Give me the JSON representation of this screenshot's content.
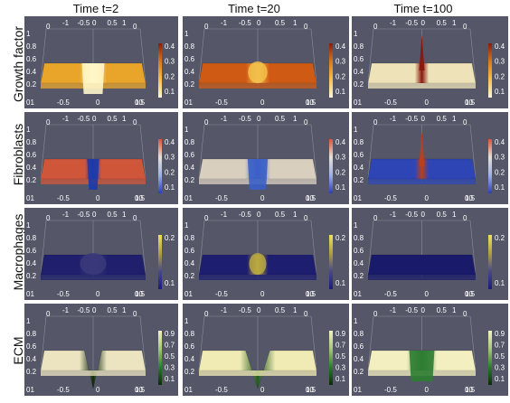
{
  "columns": [
    "Time t=2",
    "Time t=20",
    "Time t=100"
  ],
  "rows": [
    {
      "label": "Growth factor",
      "colorbar_ticks": [
        "0.4",
        "0.3",
        "0.2",
        "0.1"
      ],
      "colormap": [
        "#fff7dc",
        "#f5c24a",
        "#d8781e",
        "#8b1a10"
      ]
    },
    {
      "label": "Fibroblasts",
      "colorbar_ticks": [
        "0.4",
        "0.3",
        "0.2",
        "0.1"
      ],
      "colormap": [
        "#2b3fb0",
        "#9db2e6",
        "#e6e0d6",
        "#d8553c"
      ]
    },
    {
      "label": "Macrophages",
      "colorbar_ticks": [
        "0.2",
        "0.1"
      ],
      "colormap": [
        "#1a1a7a",
        "#4a4a8a",
        "#b0a040",
        "#f0e060"
      ]
    },
    {
      "label": "ECM",
      "colorbar_ticks": [
        "0.9",
        "0.7",
        "0.5",
        "0.3",
        "0.1"
      ],
      "colormap": [
        "#0a2a0a",
        "#2e7d32",
        "#a5c87a",
        "#f5f0c8"
      ]
    }
  ],
  "axis_ticks": {
    "x_bottom": [
      "0",
      "-0.5",
      "0",
      "0.5",
      "1"
    ],
    "x_top": [
      "-1",
      "-0.5",
      "0",
      "0.5",
      "1"
    ],
    "y_left": [
      "1",
      "0.8",
      "0.6",
      "0.4",
      "0.2"
    ],
    "corner_bottom_left": "01",
    "corner_bottom_right": "10",
    "corner_top_left": "0",
    "corner_top_right": "0"
  },
  "chart_data": {
    "type": "surface-grid",
    "panels": [
      {
        "row": "Growth factor",
        "time": "Time t=2",
        "surface_color": "#e8a52a",
        "center_feature": "dip",
        "center_color": "#fff6c8",
        "center_width": 0.18
      },
      {
        "row": "Growth factor",
        "time": "Time t=20",
        "surface_color": "#cf5a14",
        "center_feature": "ridge",
        "center_color": "#f3c04a",
        "center_width": 0.12
      },
      {
        "row": "Growth factor",
        "time": "Time t=100",
        "surface_color": "#eee3b8",
        "center_feature": "peak",
        "center_color": "#8a1a10",
        "center_width": 0.05
      },
      {
        "row": "Fibroblasts",
        "time": "Time t=2",
        "surface_color": "#d0563a",
        "center_feature": "dip",
        "center_color": "#1d3aa8",
        "center_width": 0.08
      },
      {
        "row": "Fibroblasts",
        "time": "Time t=20",
        "surface_color": "#d9cfbf",
        "center_feature": "dip",
        "center_color": "#3b5fc8",
        "center_width": 0.14
      },
      {
        "row": "Fibroblasts",
        "time": "Time t=100",
        "surface_color": "#2e45b5",
        "center_feature": "peak",
        "center_color": "#b7401e",
        "center_width": 0.05
      },
      {
        "row": "Macrophages",
        "time": "Time t=2",
        "surface_color": "#1f1f6e",
        "center_feature": "ridge",
        "center_color": "#3a3a7a",
        "center_width": 0.2
      },
      {
        "row": "Macrophages",
        "time": "Time t=20",
        "surface_color": "#1e1e70",
        "center_feature": "ridge",
        "center_color": "#b8a840",
        "center_width": 0.1
      },
      {
        "row": "Macrophages",
        "time": "Time t=100",
        "surface_color": "#1a1a6a",
        "center_feature": "flat",
        "center_color": "#1a1a6a",
        "center_width": 0.0
      },
      {
        "row": "ECM",
        "time": "Time t=2",
        "surface_color": "#ece4c0",
        "center_feature": "deep-dip",
        "center_color": "#0c2a0c",
        "center_width": 0.18
      },
      {
        "row": "ECM",
        "time": "Time t=20",
        "surface_color": "#f0ebb4",
        "center_feature": "deep-dip",
        "center_color": "#1f5a1f",
        "center_width": 0.22
      },
      {
        "row": "ECM",
        "time": "Time t=100",
        "surface_color": "#f3efc0",
        "center_feature": "dip",
        "center_color": "#2e7d32",
        "center_width": 0.2
      }
    ]
  }
}
